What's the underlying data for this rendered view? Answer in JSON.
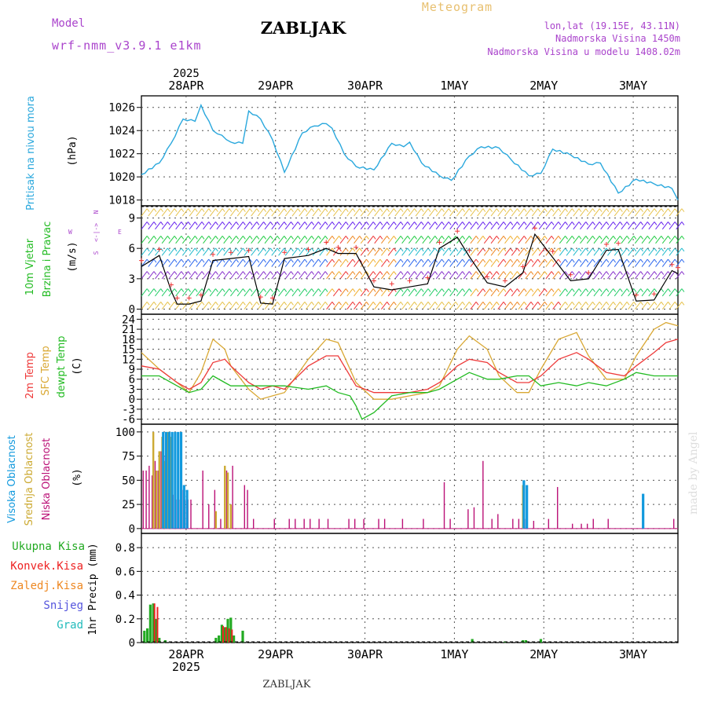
{
  "header": {
    "model_label": "Model",
    "model_name": "wrf-nmm_v3.9.1 e1km",
    "station": "ZABLJAK",
    "meteogram": "Meteogram",
    "lonlat": "lon,lat (19.15E, 43.11N)",
    "elevation": "Nadmorska Visina 1450m",
    "model_elevation": "Nadmorska Visina u modelu 1408.02m",
    "footer_station": "ZABLJAK",
    "credit": "made by Angel"
  },
  "time_axis": {
    "year": "2025",
    "days": [
      "28APR",
      "29APR",
      "30APR",
      "1MAY",
      "2MAY",
      "3MAY"
    ]
  },
  "colors": {
    "pressure": "#2aa8dd",
    "temp2m": "#ee3a3a",
    "sfc": "#d9a834",
    "dewpt": "#22bb22",
    "high": "#1199dd",
    "mid": "#ccaa33",
    "low": "#bb1177",
    "total": "#22aa22",
    "conv": "#ee2222",
    "frozen": "#ee8822",
    "snow": "#5555dd",
    "grad": "#22bbbb",
    "purple": "#aa44cc"
  },
  "panels": {
    "pressure": {
      "label": "Pritisak na nivou mora",
      "unit": "(hPa)",
      "ticks": [
        "1018",
        "1020",
        "1022",
        "1024",
        "1026"
      ]
    },
    "wind": {
      "label1": "10m Vjetar",
      "label2": "Brzina i Pravac",
      "unit": "(m/s)",
      "ticks": [
        "0",
        "3",
        "6",
        "9"
      ],
      "compass_w": "W",
      "compass_e": "E",
      "compass_arrow": "<-|->",
      "compass_n": "N",
      "compass_s": "S"
    },
    "temp": {
      "label1": "2m Temp",
      "label2": "SFC Temp",
      "label3": "dewpt Temp",
      "unit": "(C)",
      "ticks": [
        "-6",
        "-3",
        "0",
        "3",
        "6",
        "9",
        "12",
        "15",
        "18",
        "21",
        "24"
      ]
    },
    "cloud": {
      "label1": "Visoka Oblacnost",
      "label2": "Srednja Oblacnost",
      "label3": "Niska Oblacnost",
      "unit": "(%)",
      "ticks": [
        "0",
        "25",
        "50",
        "75",
        "100"
      ]
    },
    "precip": {
      "labels": [
        "Ukupna Kisa",
        "Konvek.Kisa",
        "Zaledj.Kisa",
        "Snijeg",
        "Grad"
      ],
      "unit": "1hr Precip (mm)",
      "ticks": [
        "0",
        "0.2",
        "0.4",
        "0.6",
        "0.8"
      ]
    }
  },
  "chart_data": [
    {
      "type": "line",
      "name": "pressure",
      "series": [
        {
          "name": "Pritisak na nivou mora",
          "x": [
            0,
            6,
            10,
            14,
            18,
            20,
            24,
            27,
            30,
            34,
            36,
            40,
            44,
            48,
            54,
            58,
            62,
            64,
            68,
            72,
            78,
            84,
            88,
            90,
            94,
            100,
            104,
            110,
            114,
            120,
            124,
            130,
            134,
            138,
            144,
            150,
            154,
            160,
            166,
            172,
            178,
            180
          ],
          "values": [
            1020.2,
            1021.2,
            1022.9,
            1025.0,
            1024.8,
            1026.2,
            1024.0,
            1023.6,
            1023.0,
            1022.9,
            1025.7,
            1025.0,
            1023.2,
            1020.4,
            1023.8,
            1024.4,
            1024.6,
            1024.2,
            1022.0,
            1020.9,
            1020.6,
            1022.9,
            1022.6,
            1023.0,
            1021.2,
            1020.1,
            1019.7,
            1021.8,
            1022.6,
            1022.5,
            1021.5,
            1020.1,
            1020.3,
            1022.4,
            1021.9,
            1021.1,
            1021.2,
            1018.6,
            1019.8,
            1019.4,
            1019.0,
            1018.0
          ]
        }
      ],
      "ylim": [
        1017.5,
        1027
      ]
    },
    {
      "type": "line",
      "name": "wind",
      "series": [
        {
          "name": "Brzina",
          "x": [
            0,
            6,
            10,
            12,
            16,
            20,
            24,
            30,
            36,
            40,
            44,
            48,
            56,
            62,
            66,
            72,
            78,
            84,
            90,
            96,
            100,
            106,
            110,
            116,
            122,
            128,
            132,
            138,
            144,
            150,
            156,
            160,
            166,
            172,
            178,
            180
          ],
          "values": [
            4.2,
            5.3,
            1.8,
            0.5,
            0.5,
            0.8,
            4.8,
            5.0,
            5.2,
            0.6,
            0.5,
            5.0,
            5.3,
            6.0,
            5.5,
            5.5,
            2.2,
            1.9,
            2.2,
            2.5,
            6.0,
            7.1,
            5.2,
            2.6,
            2.2,
            3.6,
            7.4,
            5.1,
            2.8,
            3.0,
            5.8,
            5.9,
            0.8,
            0.9,
            3.8,
            3.5
          ]
        }
      ],
      "ylim": [
        -0.5,
        10.2
      ]
    },
    {
      "type": "line",
      "name": "temperature",
      "series": [
        {
          "name": "2m Temp",
          "x": [
            0,
            6,
            12,
            16,
            20,
            24,
            28,
            30,
            36,
            40,
            44,
            48,
            56,
            62,
            66,
            72,
            78,
            84,
            90,
            96,
            100,
            106,
            110,
            116,
            120,
            126,
            130,
            134,
            140,
            146,
            150,
            156,
            162,
            166,
            172,
            176,
            180
          ],
          "values": [
            10,
            9,
            5,
            3,
            5,
            11,
            12,
            10,
            5,
            3,
            4,
            3,
            10,
            13,
            13,
            4,
            2,
            2,
            2,
            3,
            5,
            10,
            12,
            11,
            8,
            5,
            5,
            7,
            12,
            14,
            12,
            8,
            7,
            10,
            14,
            17,
            18
          ]
        },
        {
          "name": "SFC Temp",
          "x": [
            0,
            6,
            12,
            16,
            20,
            24,
            28,
            30,
            36,
            40,
            44,
            48,
            56,
            62,
            66,
            72,
            78,
            84,
            90,
            96,
            100,
            106,
            110,
            116,
            120,
            126,
            130,
            134,
            140,
            146,
            150,
            156,
            162,
            166,
            172,
            176,
            180
          ],
          "values": [
            14,
            9,
            5,
            2,
            8,
            18,
            15,
            10,
            3,
            0,
            1,
            2,
            12,
            18,
            17,
            5,
            0,
            0,
            1,
            2,
            4,
            15,
            19,
            15,
            7,
            2,
            2,
            9,
            18,
            20,
            13,
            6,
            6,
            13,
            21,
            23,
            22
          ]
        },
        {
          "name": "dewpt Temp",
          "x": [
            0,
            6,
            12,
            16,
            20,
            24,
            28,
            30,
            36,
            40,
            44,
            48,
            56,
            62,
            66,
            70,
            72,
            74,
            78,
            84,
            90,
            96,
            100,
            106,
            110,
            116,
            120,
            126,
            130,
            134,
            140,
            146,
            150,
            156,
            162,
            166,
            172,
            176,
            180
          ],
          "values": [
            7,
            7,
            4,
            2,
            3,
            7,
            5,
            4,
            4,
            4,
            4,
            4,
            3,
            4,
            2,
            1,
            -2,
            -6,
            -4,
            1,
            2,
            2,
            3,
            6,
            8,
            6,
            6,
            7,
            7,
            4,
            5,
            4,
            5,
            4,
            6,
            8,
            7,
            7,
            7
          ]
        }
      ],
      "ylim": [
        -7.5,
        25.5
      ]
    },
    {
      "type": "bar",
      "name": "cloud",
      "series": [
        {
          "name": "Visoka Oblacnost",
          "x": [
            7,
            8,
            9,
            10,
            11,
            12,
            13,
            14,
            15,
            128,
            129,
            168
          ],
          "values": [
            100,
            100,
            100,
            100,
            100,
            100,
            100,
            45,
            40,
            50,
            45,
            36
          ]
        },
        {
          "name": "Srednja Oblacnost",
          "x": [
            4,
            5,
            6,
            7,
            8,
            9,
            10,
            25,
            28,
            29,
            30,
            128
          ],
          "values": [
            100,
            60,
            80,
            95,
            70,
            100,
            95,
            18,
            65,
            58,
            25,
            45
          ]
        },
        {
          "name": "Niska Oblacnost",
          "x": [
            1,
            2,
            3,
            4,
            5,
            6,
            7,
            8,
            9,
            10,
            11,
            12,
            13,
            14,
            15,
            16,
            17,
            21,
            23,
            25,
            27,
            29,
            31,
            35,
            36,
            38,
            45,
            50,
            52,
            55,
            57,
            60,
            63,
            70,
            72,
            75,
            80,
            82,
            88,
            95,
            102,
            104,
            110,
            112,
            115,
            118,
            120,
            125,
            127,
            129,
            132,
            137,
            140,
            145,
            148,
            150,
            152,
            157,
            179
          ],
          "values": [
            60,
            60,
            65,
            55,
            70,
            60,
            80,
            75,
            65,
            50,
            35,
            30,
            30,
            40,
            30,
            30,
            30,
            60,
            25,
            40,
            10,
            60,
            65,
            45,
            40,
            10,
            10,
            10,
            10,
            10,
            10,
            10,
            10,
            10,
            10,
            10,
            10,
            10,
            10,
            10,
            48,
            10,
            20,
            22,
            70,
            10,
            15,
            10,
            10,
            10,
            8,
            10,
            43,
            5,
            5,
            5,
            10,
            10,
            10
          ]
        }
      ],
      "ylim": [
        -5,
        108
      ]
    },
    {
      "type": "bar",
      "name": "precip",
      "series": [
        {
          "name": "Ukupna Kisa",
          "x": [
            1,
            2,
            3,
            4,
            5,
            6,
            8,
            25,
            26,
            27,
            28,
            29,
            30,
            31,
            34,
            111,
            122,
            128,
            129,
            134
          ],
          "values": [
            0.1,
            0.12,
            0.32,
            0.33,
            0.2,
            0.04,
            0.02,
            0.04,
            0.06,
            0.15,
            0.13,
            0.2,
            0.21,
            0.06,
            0.1,
            0.03,
            0.01,
            0.02,
            0.02,
            0.03
          ]
        },
        {
          "name": "Konvek.Kisa",
          "x": [
            4,
            5,
            27,
            28,
            29,
            30
          ],
          "values": [
            0.33,
            0.3,
            0.14,
            0.13,
            0.12,
            0.11
          ]
        }
      ],
      "ylim": [
        0,
        0.92
      ]
    }
  ]
}
